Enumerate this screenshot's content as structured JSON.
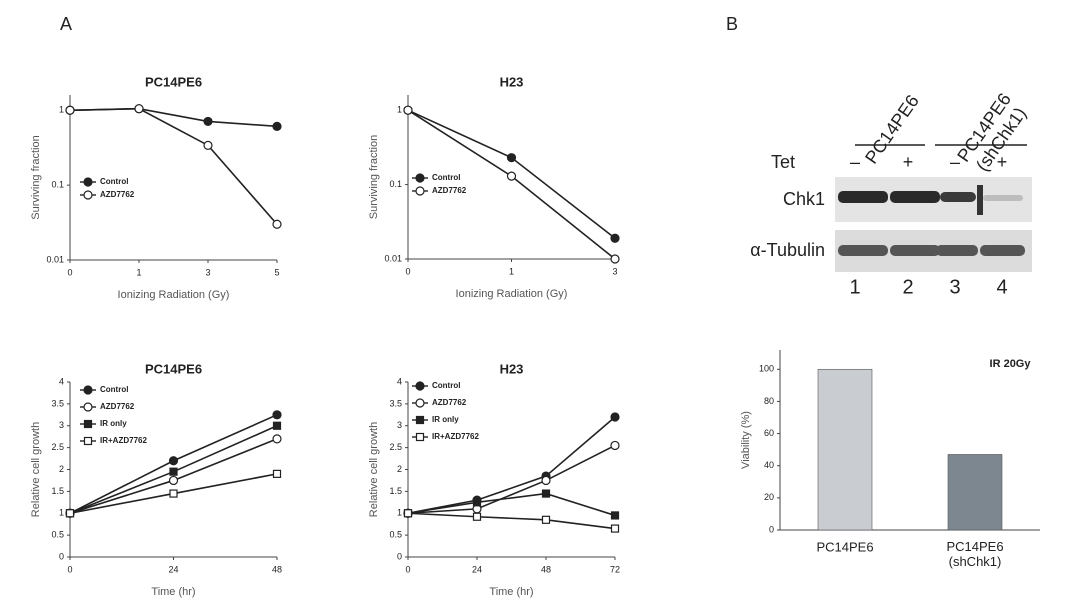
{
  "panels": [
    "A",
    "B"
  ],
  "chart_data": [
    {
      "type": "line",
      "title": "PC14PE6",
      "x_label": "Ionizing Radiation (Gy)",
      "y_label": "Surviving fraction",
      "categories": [
        "0",
        "1",
        "3",
        "5"
      ],
      "log_y": true,
      "ylim": [
        0.01,
        1.6
      ],
      "yticks": [
        0.01,
        0.1,
        1
      ],
      "grid": false,
      "legend": "left",
      "series": [
        {
          "name": "Control",
          "color": "#222222",
          "marker": "circle",
          "filled": true,
          "values": [
            1,
            1.05,
            0.71,
            0.61
          ]
        },
        {
          "name": "AZD7762",
          "color": "#222222",
          "marker": "circle",
          "filled": false,
          "values": [
            1,
            1.05,
            0.34,
            0.03
          ]
        }
      ]
    },
    {
      "type": "line",
      "title": "H23",
      "x_label": "Ionizing Radiation (Gy)",
      "y_label": "Surviving fraction",
      "categories": [
        "0",
        "1",
        "3"
      ],
      "log_y": true,
      "ylim": [
        0.01,
        1.6
      ],
      "yticks": [
        0.01,
        0.1,
        1
      ],
      "grid": false,
      "legend": "left",
      "series": [
        {
          "name": "Control",
          "color": "#222222",
          "marker": "circle",
          "filled": true,
          "values": [
            1,
            0.23,
            0.019
          ]
        },
        {
          "name": "AZD7762",
          "color": "#222222",
          "marker": "circle",
          "filled": false,
          "values": [
            1,
            0.13,
            0.01
          ]
        }
      ]
    },
    {
      "type": "line",
      "title": "PC14PE6",
      "x_label": "Time (hr)",
      "y_label": "Relative cell growth",
      "x": [
        0,
        24,
        48
      ],
      "xlim": [
        0,
        48
      ],
      "xticks": [
        0,
        24,
        48
      ],
      "log_y": false,
      "ylim": [
        0,
        4
      ],
      "yticks": [
        0,
        0.5,
        1,
        1.5,
        2,
        2.5,
        3,
        3.5,
        4
      ],
      "grid": false,
      "legend": "left",
      "series": [
        {
          "name": "Control",
          "color": "#222222",
          "marker": "circle",
          "filled": true,
          "values": [
            1,
            2.2,
            3.25
          ]
        },
        {
          "name": "AZD7762",
          "color": "#222222",
          "marker": "circle",
          "filled": false,
          "values": [
            1,
            1.75,
            2.7
          ]
        },
        {
          "name": "IR only",
          "color": "#222222",
          "marker": "square",
          "filled": true,
          "values": [
            1,
            1.95,
            3.0
          ]
        },
        {
          "name": "IR+AZD7762",
          "color": "#222222",
          "marker": "square",
          "filled": false,
          "values": [
            1,
            1.45,
            1.9
          ]
        }
      ]
    },
    {
      "type": "line",
      "title": "H23",
      "x_label": "Time (hr)",
      "y_label": "Relative cell growth",
      "x": [
        0,
        24,
        48,
        72
      ],
      "xlim": [
        0,
        72
      ],
      "xticks": [
        0,
        24,
        48,
        72
      ],
      "log_y": false,
      "ylim": [
        0,
        4
      ],
      "yticks": [
        0,
        0.5,
        1,
        1.5,
        2,
        2.5,
        3,
        3.5,
        4
      ],
      "grid": false,
      "legend": "left",
      "series": [
        {
          "name": "Control",
          "color": "#222222",
          "marker": "circle",
          "filled": true,
          "values": [
            1,
            1.3,
            1.85,
            3.2
          ]
        },
        {
          "name": "AZD7762",
          "color": "#222222",
          "marker": "circle",
          "filled": false,
          "values": [
            1,
            1.1,
            1.75,
            2.55
          ]
        },
        {
          "name": "IR only",
          "color": "#222222",
          "marker": "square",
          "filled": true,
          "values": [
            1,
            1.25,
            1.45,
            0.95
          ]
        },
        {
          "name": "IR+AZD7762",
          "color": "#222222",
          "marker": "square",
          "filled": false,
          "values": [
            1,
            0.92,
            0.85,
            0.65
          ]
        }
      ]
    },
    {
      "type": "bar",
      "annotation": "IR 20Gy",
      "y_label": "Viability (%)",
      "categories": [
        "PC14PE6",
        "PC14PE6\n(shChk1)"
      ],
      "values": [
        100,
        47
      ],
      "colors": [
        "#c9ccd1",
        "#7d878f"
      ],
      "ylim": [
        0,
        112
      ],
      "yticks": [
        0,
        20,
        40,
        60,
        80,
        100
      ],
      "grid": false
    }
  ],
  "blot": {
    "groups": [
      "PC14PE6",
      "PC14PE6\n(shChk1)"
    ],
    "treatment": "Tet",
    "lane_signs": [
      "–",
      "+",
      "–",
      "+"
    ],
    "rows": [
      "Chk1",
      "α-Tubulin"
    ],
    "lanes": [
      "1",
      "2",
      "3",
      "4"
    ]
  }
}
